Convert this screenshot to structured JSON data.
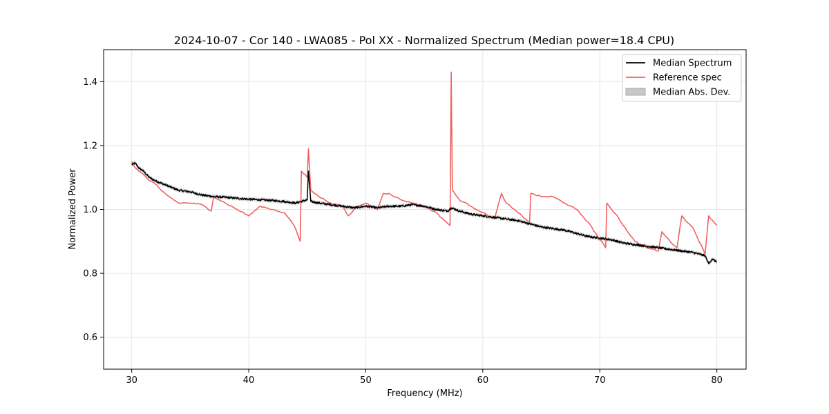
{
  "chart_data": {
    "type": "line",
    "title": "2024-10-07 - Cor 140 - LWA085 - Pol XX - Normalized Spectrum (Median power=18.4 CPU)",
    "xlabel": "Frequency (MHz)",
    "ylabel": "Normalized Power",
    "xlim": [
      27.6,
      82.5
    ],
    "ylim": [
      0.5,
      1.5
    ],
    "xticks": [
      30,
      40,
      50,
      60,
      70,
      80
    ],
    "yticks": [
      0.6,
      0.8,
      1.0,
      1.2,
      1.4
    ],
    "grid": true,
    "legend_position": "top-right",
    "legend": [
      "Median Spectrum",
      "Reference spec",
      "Median Abs. Dev."
    ],
    "colors": {
      "median": "#000000",
      "reference": "#f06060",
      "mad": "#c8c8c8",
      "grid": "#e6e6e6"
    },
    "series": [
      {
        "name": "Median Spectrum",
        "x": [
          30.0,
          30.3,
          30.6,
          31.0,
          31.5,
          32.0,
          33.0,
          34.0,
          35.0,
          36.0,
          37.0,
          38.0,
          39.0,
          40.0,
          41.0,
          42.0,
          43.0,
          44.0,
          44.5,
          45.0,
          45.1,
          45.3,
          46.0,
          47.0,
          48.0,
          49.0,
          50.0,
          51.0,
          52.0,
          53.0,
          54.0,
          55.0,
          56.0,
          57.0,
          57.3,
          58.0,
          59.0,
          60.0,
          61.0,
          62.0,
          63.0,
          64.0,
          65.0,
          66.0,
          67.0,
          68.0,
          69.0,
          70.0,
          71.0,
          72.0,
          73.0,
          74.0,
          75.0,
          76.0,
          77.0,
          78.0,
          79.0,
          79.3,
          79.6,
          80.0
        ],
        "values": [
          1.14,
          1.145,
          1.13,
          1.12,
          1.1,
          1.09,
          1.075,
          1.06,
          1.055,
          1.045,
          1.04,
          1.038,
          1.035,
          1.032,
          1.03,
          1.028,
          1.025,
          1.02,
          1.025,
          1.03,
          1.12,
          1.025,
          1.02,
          1.015,
          1.01,
          1.005,
          1.01,
          1.005,
          1.01,
          1.01,
          1.015,
          1.01,
          1.0,
          0.995,
          1.005,
          0.995,
          0.985,
          0.98,
          0.975,
          0.97,
          0.965,
          0.955,
          0.945,
          0.94,
          0.935,
          0.925,
          0.915,
          0.91,
          0.905,
          0.895,
          0.89,
          0.885,
          0.88,
          0.875,
          0.87,
          0.865,
          0.855,
          0.83,
          0.845,
          0.835
        ]
      },
      {
        "name": "Reference spec",
        "x": [
          30.0,
          30.3,
          30.6,
          31.0,
          31.5,
          32.0,
          32.5,
          33.0,
          34.0,
          35.0,
          36.0,
          36.8,
          37.0,
          38.0,
          39.0,
          40.0,
          41.0,
          42.0,
          43.0,
          43.5,
          44.0,
          44.2,
          44.4,
          44.5,
          45.0,
          45.1,
          45.3,
          46.0,
          47.0,
          48.0,
          48.5,
          49.0,
          50.0,
          51.0,
          51.5,
          52.0,
          53.0,
          54.0,
          55.0,
          56.0,
          57.2,
          57.3,
          57.4,
          58.0,
          59.0,
          60.0,
          61.0,
          61.6,
          62.0,
          63.0,
          64.0,
          64.1,
          65.0,
          66.0,
          67.0,
          68.0,
          69.0,
          70.5,
          70.6,
          71.0,
          71.5,
          72.0,
          73.0,
          74.0,
          75.0,
          75.3,
          76.0,
          76.6,
          77.0,
          78.0,
          79.0,
          79.3,
          80.0
        ],
        "values": [
          1.15,
          1.13,
          1.12,
          1.11,
          1.09,
          1.08,
          1.06,
          1.045,
          1.02,
          1.02,
          1.015,
          0.995,
          1.04,
          1.02,
          1.0,
          0.98,
          1.01,
          1.0,
          0.99,
          0.97,
          0.94,
          0.92,
          0.9,
          1.12,
          1.1,
          1.19,
          1.06,
          1.04,
          1.02,
          1.01,
          0.98,
          1.0,
          1.02,
          1.0,
          1.05,
          1.05,
          1.03,
          1.02,
          1.01,
          0.99,
          0.95,
          1.43,
          1.06,
          1.03,
          1.01,
          0.99,
          0.97,
          1.05,
          1.02,
          0.99,
          0.96,
          1.05,
          1.04,
          1.04,
          1.02,
          1.0,
          0.96,
          0.88,
          1.02,
          1.0,
          0.98,
          0.95,
          0.9,
          0.88,
          0.87,
          0.93,
          0.9,
          0.88,
          0.98,
          0.94,
          0.86,
          0.98,
          0.95
        ]
      }
    ]
  }
}
